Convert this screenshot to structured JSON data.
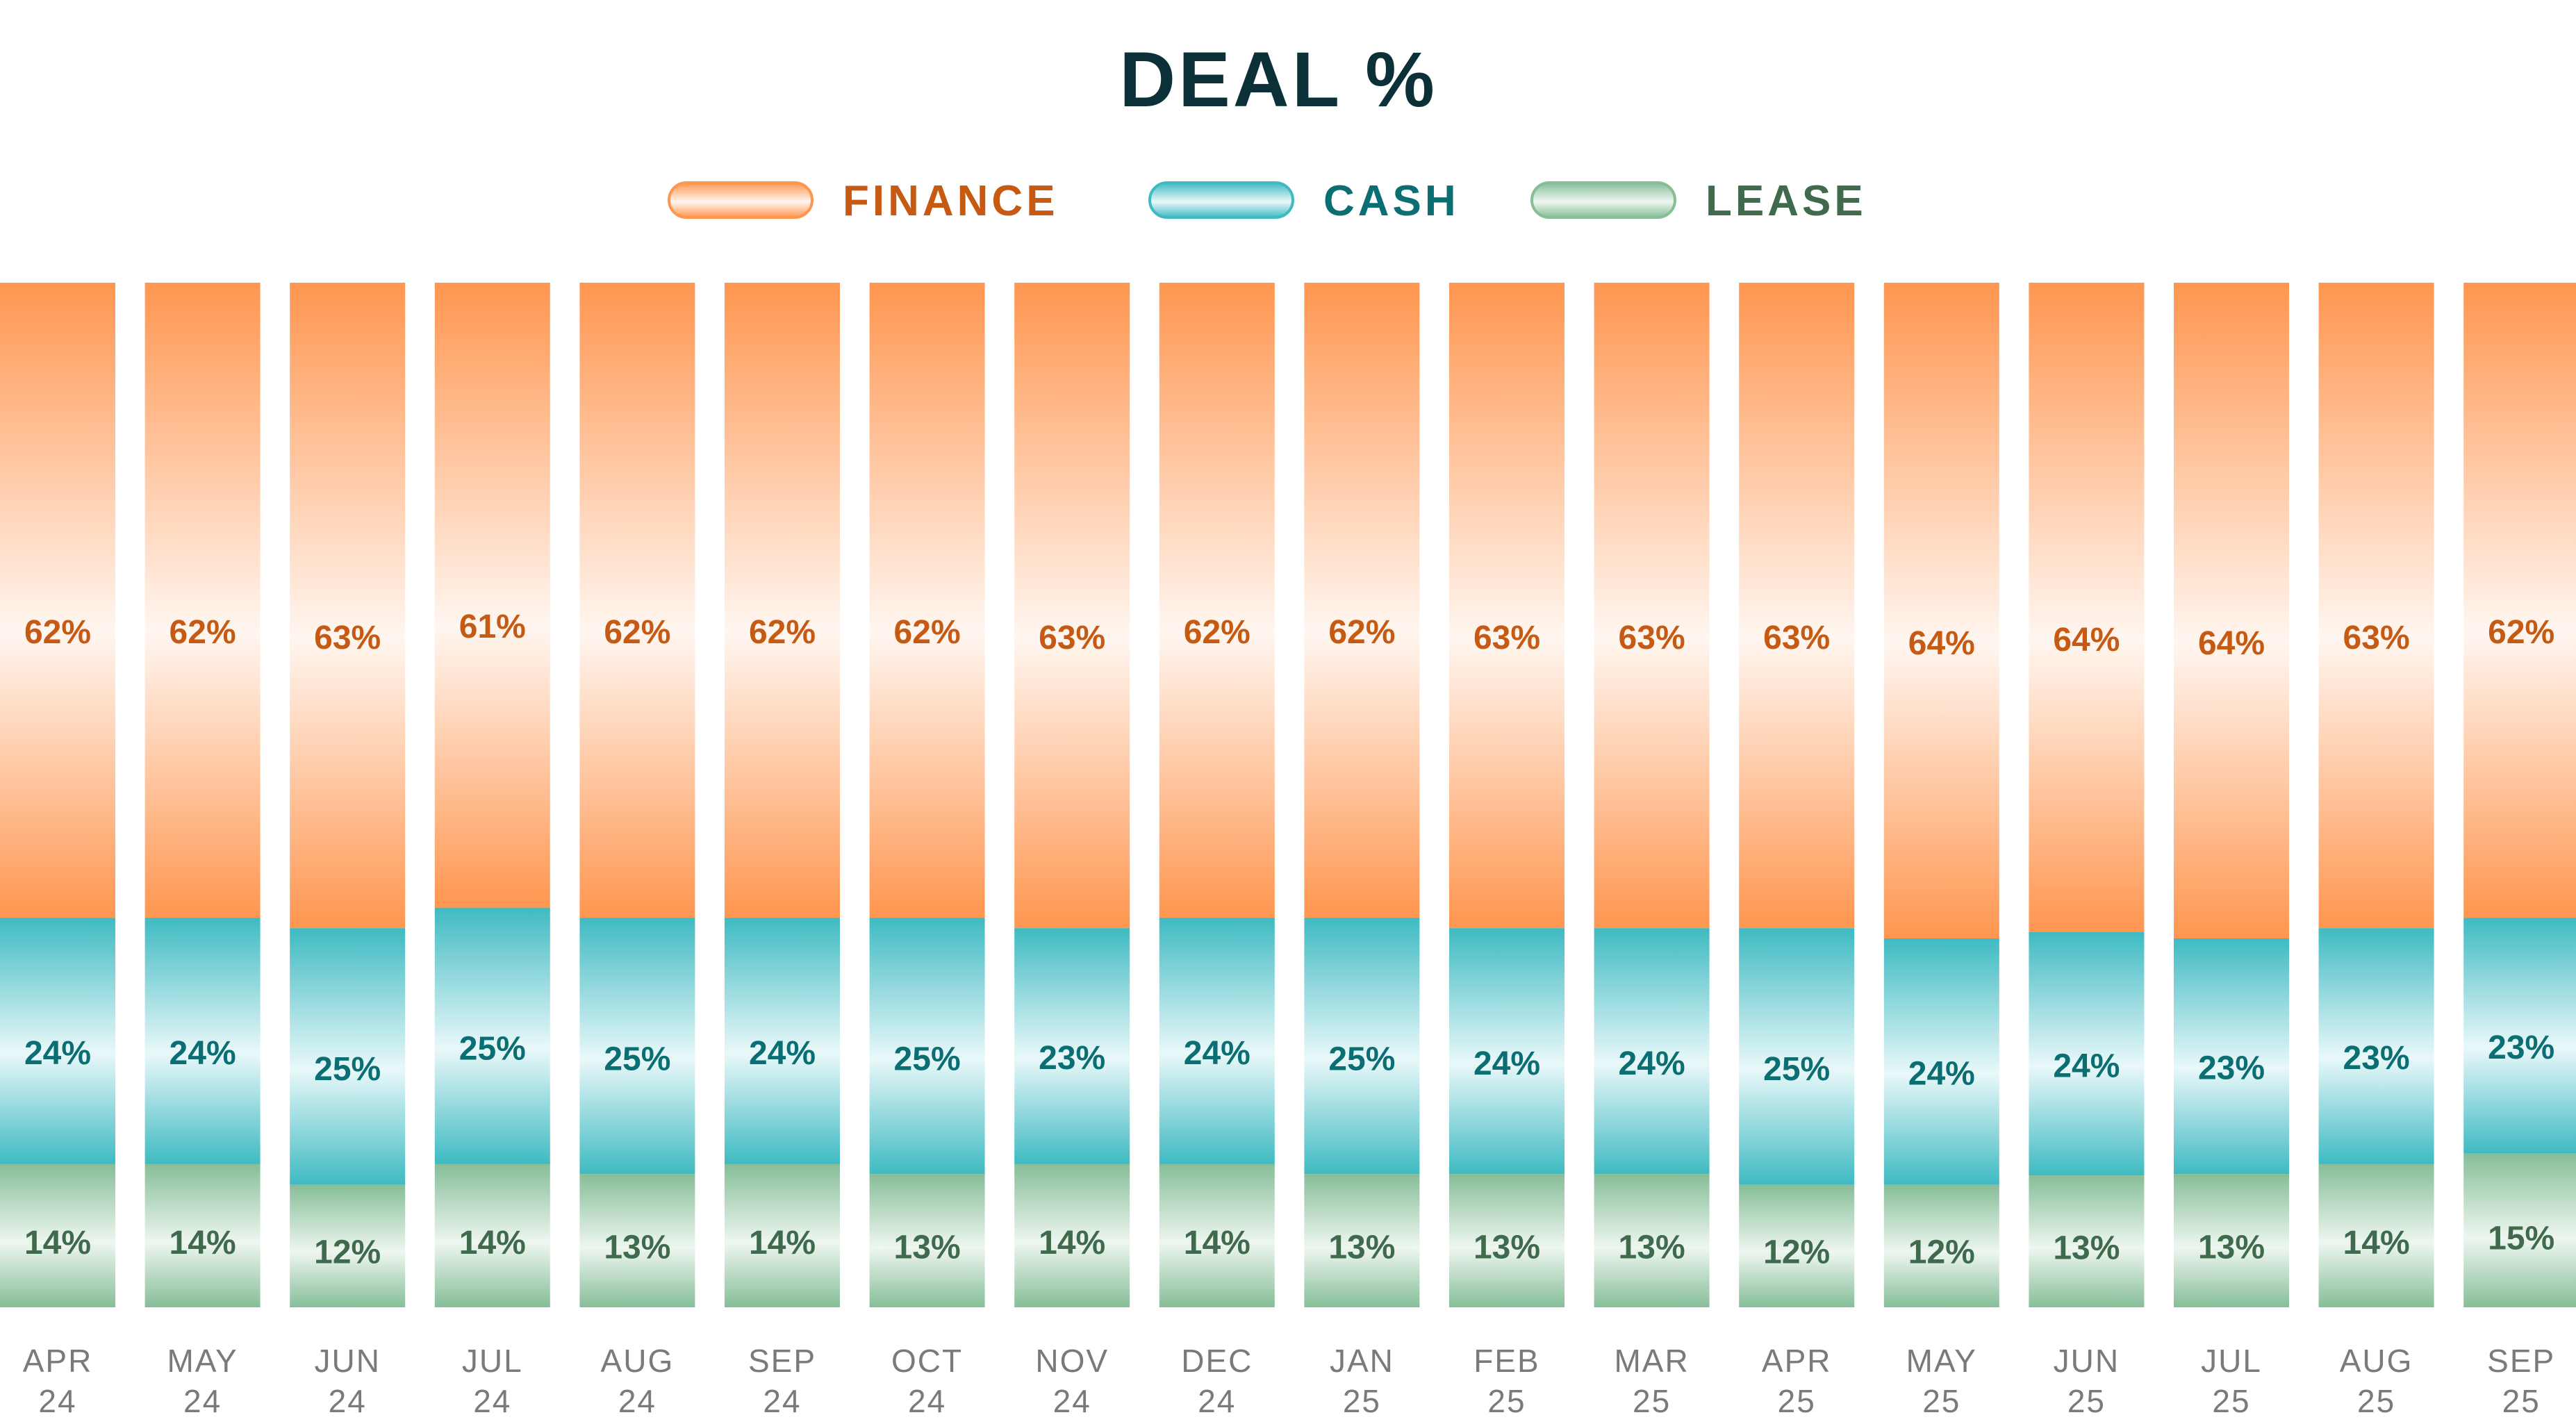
{
  "chart_data": {
    "type": "bar",
    "stacked": true,
    "title": "DEAL %",
    "legend_position": "top-center",
    "grid": false,
    "categories": [
      [
        "APR",
        "24"
      ],
      [
        "MAY",
        "24"
      ],
      [
        "JUN",
        "24"
      ],
      [
        "JUL",
        "24"
      ],
      [
        "AUG",
        "24"
      ],
      [
        "SEP",
        "24"
      ],
      [
        "OCT",
        "24"
      ],
      [
        "NOV",
        "24"
      ],
      [
        "DEC",
        "24"
      ],
      [
        "JAN",
        "25"
      ],
      [
        "FEB",
        "25"
      ],
      [
        "MAR",
        "25"
      ],
      [
        "APR",
        "25"
      ],
      [
        "MAY",
        "25"
      ],
      [
        "JUN",
        "25"
      ],
      [
        "JUL",
        "25"
      ],
      [
        "AUG",
        "25"
      ],
      [
        "SEP",
        "25"
      ]
    ],
    "series": [
      {
        "name": "FINANCE",
        "color": "#ff9650",
        "label_color": "#c65a12",
        "values": [
          62,
          62,
          63,
          61,
          62,
          62,
          62,
          63,
          62,
          62,
          63,
          63,
          63,
          64,
          64,
          64,
          63,
          62
        ]
      },
      {
        "name": "CASH",
        "color": "#3fbac2",
        "label_color": "#0a6e73",
        "values": [
          24,
          24,
          25,
          25,
          25,
          24,
          25,
          23,
          24,
          25,
          24,
          24,
          25,
          24,
          24,
          23,
          23,
          23
        ]
      },
      {
        "name": "LEASE",
        "color": "#86be98",
        "label_color": "#3f6b4c",
        "values": [
          14,
          14,
          12,
          14,
          13,
          14,
          13,
          14,
          14,
          13,
          13,
          13,
          12,
          12,
          13,
          13,
          14,
          15
        ]
      }
    ],
    "value_suffix": "%",
    "ylim": [
      0,
      100
    ]
  }
}
